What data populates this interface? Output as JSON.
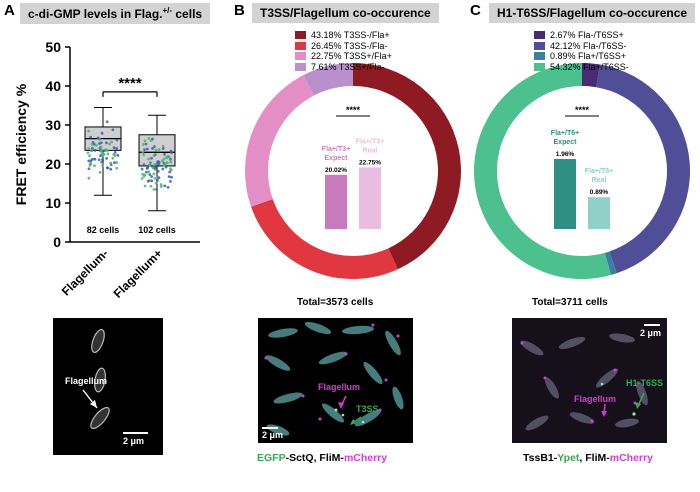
{
  "panels": {
    "a": {
      "letter": "A",
      "title": "c-di-GMP levels in Flag.",
      "title_sup": "+/-",
      "title_end": " cells"
    },
    "b": {
      "letter": "B",
      "title": "T3SS/Flagellum co-occurence"
    },
    "c": {
      "letter": "C",
      "title": "H1-T6SS/Flagellum co-occurence"
    }
  },
  "chart_data": [
    {
      "type": "box",
      "ylabel": "FRET efficiency %",
      "ylim": [
        0,
        50
      ],
      "yticks": [
        0,
        10,
        20,
        30,
        40,
        50
      ],
      "categories": [
        "Flagellum-",
        "Flagellum+"
      ],
      "n_labels": [
        "82 cells",
        "102 cells"
      ],
      "significance": "****",
      "boxes": [
        {
          "name": "Flagellum-",
          "min": 12,
          "q1": 23.5,
          "median": 26.5,
          "q3": 29.5,
          "max": 34.5
        },
        {
          "name": "Flagellum+",
          "min": 8,
          "q1": 19.5,
          "median": 23,
          "q3": 27.5,
          "max": 32.5
        }
      ],
      "point_colors": [
        "#4fb36b",
        "#3a5fb5"
      ]
    },
    {
      "type": "pie",
      "style": "donut",
      "legend": [
        {
          "pct": "43.18%",
          "label": "T3SS-/Fla+",
          "value": 43.18,
          "color": "#8e1b24"
        },
        {
          "pct": "26.45%",
          "label": "T3SS-/Fla-",
          "value": 26.45,
          "color": "#e03740"
        },
        {
          "pct": "22.75%",
          "label": "T3SS+/Fla+",
          "value": 22.75,
          "color": "#e48ec6"
        },
        {
          "pct": "7.61%",
          "label": "T3SS+/Fla-",
          "value": 7.61,
          "color": "#b990cc"
        }
      ],
      "total": "Total=3573 cells",
      "inset_bars": [
        {
          "label": "Fla+/T3+\nExpect",
          "value": 20.02,
          "value_label": "20.02%",
          "color": "#c77bbd"
        },
        {
          "label": "Fla+/T3+\nReal",
          "value": 22.75,
          "value_label": "22.75%",
          "color": "#e9bde0"
        }
      ],
      "significance": "****"
    },
    {
      "type": "pie",
      "style": "donut",
      "legend": [
        {
          "pct": "2.67%",
          "label": "Fla-/T6SS+",
          "value": 2.67,
          "color": "#4a2a73"
        },
        {
          "pct": "42.12%",
          "label": "Fla-/T6SS-",
          "value": 42.12,
          "color": "#4f4e96"
        },
        {
          "pct": "0.89%",
          "label": "Fla+/T6SS+",
          "value": 0.89,
          "color": "#3a7fa0"
        },
        {
          "pct": "54.32%",
          "label": "Fla+/T6SS-",
          "value": 54.32,
          "color": "#4cc08f"
        }
      ],
      "total": "Total=3711 cells",
      "inset_bars": [
        {
          "label": "Fla+/T6+\nExpect",
          "value": 1.96,
          "value_label": "1.96%",
          "color": "#2f8f82"
        },
        {
          "label": "Fla+/T6+\nReal",
          "value": 0.89,
          "value_label": "0.89%",
          "color": "#8fd0c8"
        }
      ],
      "significance": "****"
    }
  ],
  "micrographs": {
    "a": {
      "labels": [
        "Flagellum"
      ],
      "scale": "2 μm"
    },
    "b": {
      "labels": [
        "Flagellum",
        "T3SS"
      ],
      "scale": "2 μm",
      "caption": [
        {
          "text": "EGFP",
          "color": "#3aa655"
        },
        {
          "text": "-SctQ, FliM-",
          "color": "#000000"
        },
        {
          "text": "mCherry",
          "color": "#d63bd6"
        }
      ]
    },
    "c": {
      "labels": [
        "Flagellum",
        "H1-T6SS"
      ],
      "scale": "2 μm",
      "caption": [
        {
          "text": "TssB1-",
          "color": "#000000"
        },
        {
          "text": "Ypet",
          "color": "#3aa655"
        },
        {
          "text": ", FliM-",
          "color": "#000000"
        },
        {
          "text": "mCherry",
          "color": "#d63bd6"
        }
      ]
    }
  },
  "colors": {
    "green_label": "#3aa655",
    "magenta_label": "#d63bd6"
  }
}
